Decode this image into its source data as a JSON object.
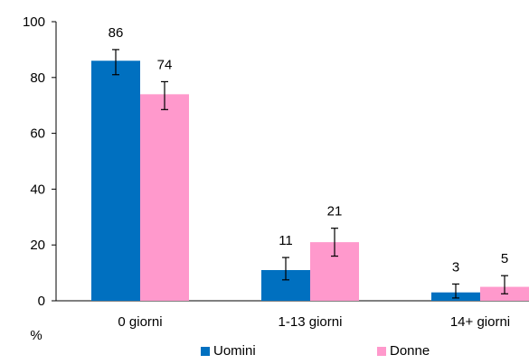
{
  "chart_data": {
    "type": "bar",
    "title": "",
    "xlabel": "",
    "ylabel": "%",
    "ylim": [
      0,
      100
    ],
    "yticks": [
      0,
      20,
      40,
      60,
      80,
      100
    ],
    "grid": false,
    "legend_position": "bottom",
    "categories": [
      "0 giorni",
      "1-13 giorni",
      "14+ giorni"
    ],
    "series": [
      {
        "name": "Uomini",
        "color": "#0070C0",
        "values": [
          86,
          11,
          3
        ],
        "value_labels": [
          "86",
          "11",
          "3"
        ],
        "error_low": [
          81,
          7.5,
          1
        ],
        "error_high": [
          90,
          15.5,
          6
        ]
      },
      {
        "name": "Donne",
        "color": "#FF99CC",
        "values": [
          74,
          21,
          5
        ],
        "value_labels": [
          "74",
          "21",
          "5"
        ],
        "error_low": [
          68.5,
          16,
          2.5
        ],
        "error_high": [
          78.5,
          26,
          9
        ]
      }
    ]
  }
}
